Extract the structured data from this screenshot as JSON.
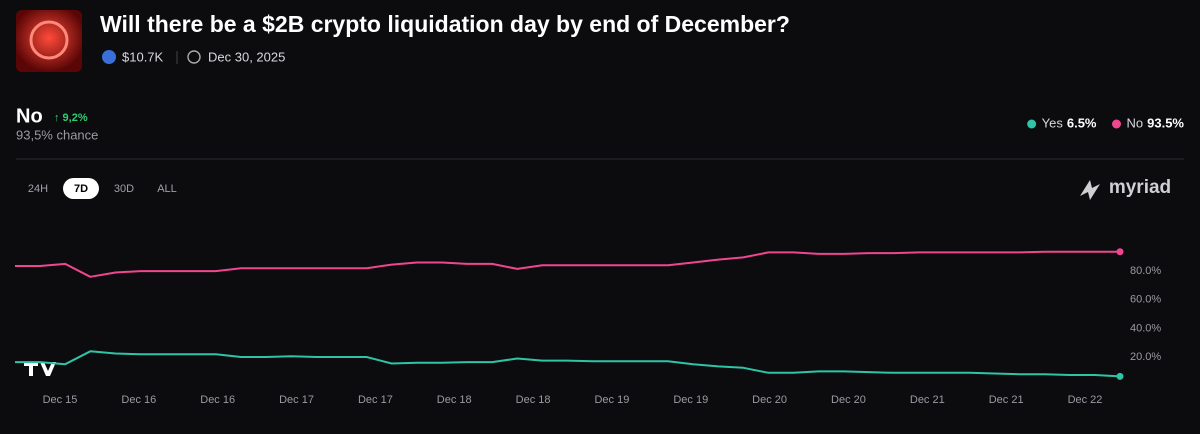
{
  "market": {
    "title": "Will there be a $2B crypto liquidation day by end of December?",
    "volume": "$10.7K",
    "date": "Dec 30, 2025",
    "outcome": "No",
    "change": "↑ 9,2%",
    "chance": "93,5% chance",
    "ranges": [
      "24H",
      "7D",
      "30D",
      "ALL"
    ],
    "brand": "myriad"
  },
  "chart_data": {
    "type": "line",
    "x_labels": [
      "Dec 15",
      "Dec 16",
      "Dec 16",
      "Dec 17",
      "Dec 17",
      "Dec 18",
      "Dec 18",
      "Dec 19",
      "Dec 19",
      "Dec 20",
      "Dec 20",
      "Dec 21",
      "Dec 21",
      "Dec 22"
    ],
    "series": [
      {
        "name": "Yes",
        "legend_value": "6.5%",
        "color": "#2ec4a6",
        "values": [
          16.5,
          16.5,
          15,
          24,
          22.5,
          22,
          22,
          22,
          22,
          20,
          20,
          20.5,
          20,
          20,
          20,
          15.5,
          16,
          16,
          16.5,
          16.5,
          19,
          17.5,
          17.5,
          17,
          17,
          17,
          17,
          15,
          13.5,
          12.5,
          9,
          9,
          10,
          10,
          9.5,
          9,
          9,
          9,
          9,
          8.5,
          8,
          8,
          7.5,
          7.5,
          6.5
        ]
      },
      {
        "name": "No",
        "legend_value": "93.5%",
        "color": "#f0468f",
        "values": [
          83.5,
          83.5,
          85,
          76,
          79,
          80,
          80,
          80,
          80,
          82,
          82,
          82,
          82,
          82,
          82,
          84.5,
          86,
          86,
          85,
          85,
          81.5,
          84,
          84,
          84,
          84,
          84,
          84,
          86,
          88,
          89.5,
          93,
          93,
          92,
          92,
          92.5,
          92.5,
          93,
          93,
          93,
          93,
          93,
          93.5,
          93.5,
          93.5,
          93.5
        ]
      }
    ],
    "ylim": [
      0,
      100
    ],
    "yticks": [
      {
        "value": 20,
        "label": "20.0%"
      },
      {
        "value": 40,
        "label": "40.0%"
      },
      {
        "value": 60,
        "label": "60.0%"
      },
      {
        "value": 80,
        "label": "80.0%"
      }
    ],
    "grid": false
  }
}
